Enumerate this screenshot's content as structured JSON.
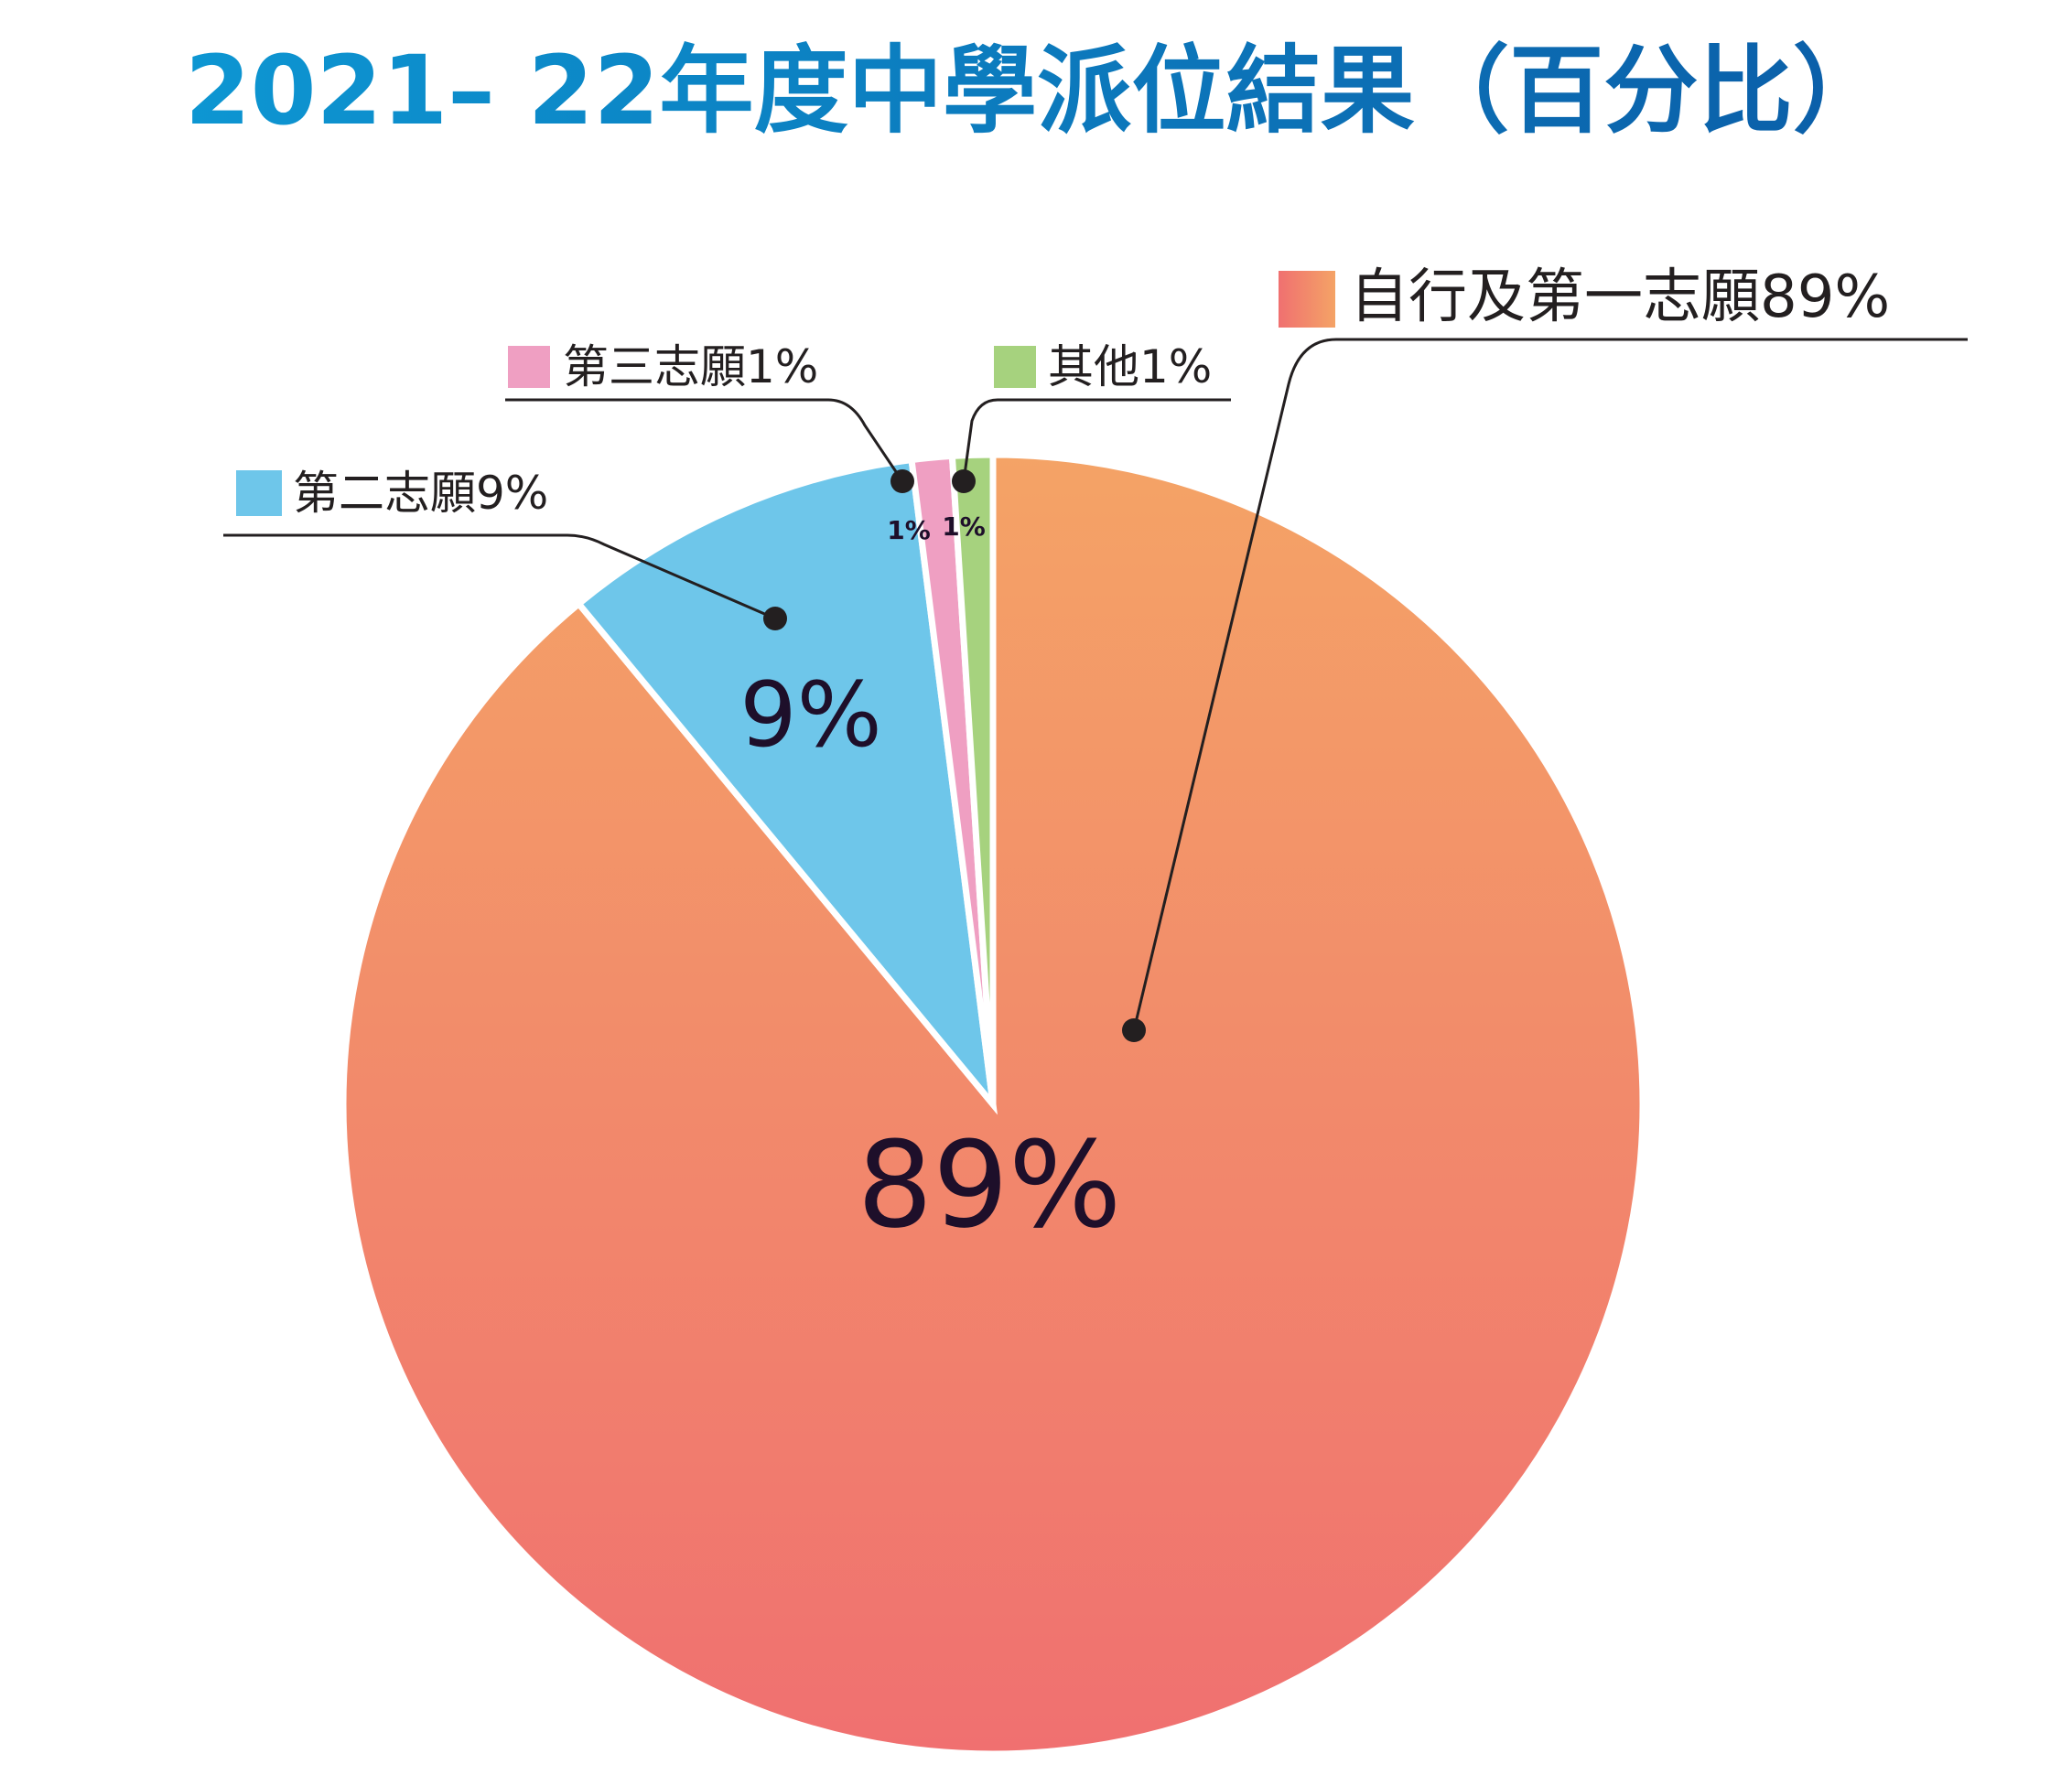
{
  "chart_data": {
    "type": "pie",
    "title": "2021– 22年度中學派位結果（百分比）",
    "slices": [
      {
        "name": "自行及第一志願",
        "value": 89,
        "legend_label": "自行及第一志願89%",
        "data_label": "89%",
        "color": "#f07070",
        "color_top": "#f4a366"
      },
      {
        "name": "第二志願",
        "value": 9,
        "legend_label": "第二志願9%",
        "data_label": "9%",
        "color": "#6ec6ea"
      },
      {
        "name": "第三志願",
        "value": 1,
        "legend_label": "第三志願1%",
        "data_label": "1%",
        "color": "#ef9fc2"
      },
      {
        "name": "其他",
        "value": 1,
        "legend_label": "其他1%",
        "data_label": "1%",
        "color": "#a6d27e"
      }
    ],
    "legend_placement": "callouts"
  },
  "colors": {
    "title_gradient_start": "#0d96d2",
    "title_gradient_end": "#0b5ea8",
    "leader_line": "#231f20",
    "slice_border": "#ffffff"
  }
}
